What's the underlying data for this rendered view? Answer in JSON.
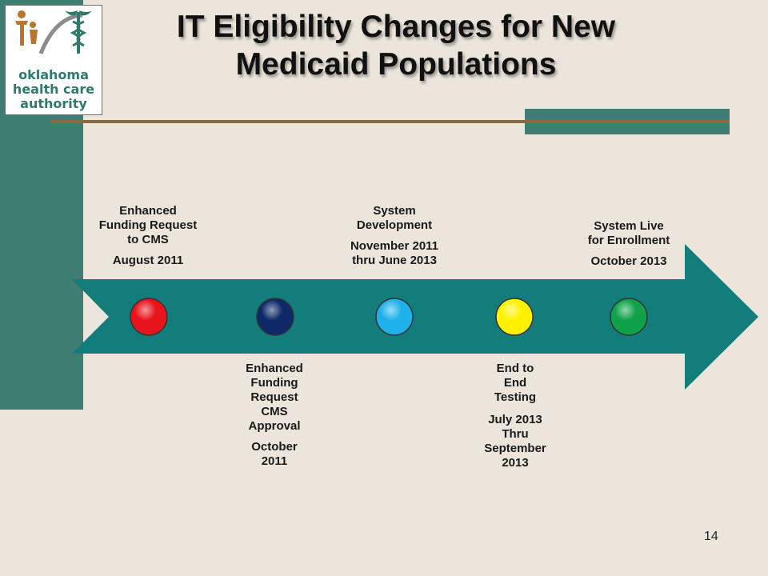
{
  "logo": {
    "line1": "oklahoma",
    "line2": "health care",
    "line3": "authority"
  },
  "title": {
    "line1": "IT Eligibility Changes for New",
    "line2": "Medicaid Populations"
  },
  "milestones": [
    {
      "lines": [
        "Enhanced",
        "Funding Request",
        "to CMS"
      ],
      "date": [
        "August 2011"
      ]
    },
    {
      "lines": [
        "Enhanced",
        "Funding",
        "Request",
        "CMS",
        "Approval"
      ],
      "date": [
        "October",
        "2011"
      ]
    },
    {
      "lines": [
        "System",
        "Development"
      ],
      "date": [
        "November 2011",
        "thru June 2013"
      ]
    },
    {
      "lines": [
        "End to",
        "End",
        "Testing"
      ],
      "date": [
        "July 2013",
        "Thru",
        "September",
        "2013"
      ]
    },
    {
      "lines": [
        "System Live",
        "for Enrollment"
      ],
      "date": [
        "October 2013"
      ]
    }
  ],
  "colors": {
    "accent": "#3d7d72",
    "rule": "#8a6d3f",
    "arrow": "#137d7b",
    "markers": [
      "#e8141c",
      "#0e2868",
      "#1fb2ea",
      "#fff200",
      "#0fa24a"
    ]
  },
  "page_number": "14"
}
